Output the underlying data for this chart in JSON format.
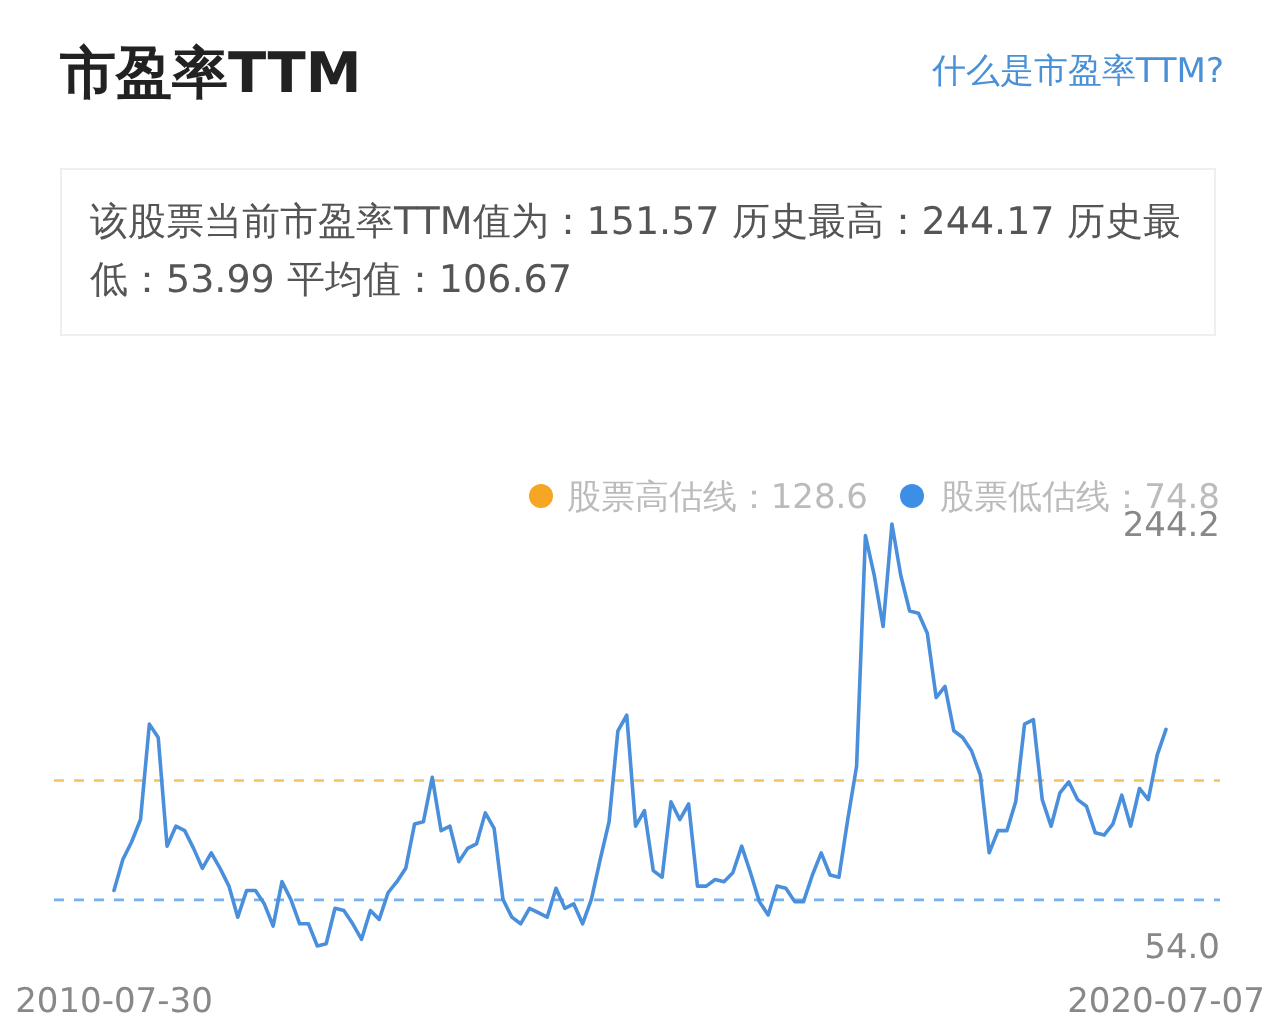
{
  "chart_data": {
    "type": "line",
    "title": "市盈率TTM",
    "annotations": [
      "什么是市盈率TTM?",
      "该股票当前市盈率TTM值为：151.57 历史最高：244.17 历史最低：53.99 平均值：106.67"
    ],
    "categories": [
      "2010-07-30",
      null,
      null,
      null,
      null,
      null,
      null,
      null,
      null,
      null,
      null,
      null,
      null,
      null,
      null,
      null,
      null,
      null,
      null,
      null,
      null,
      null,
      null,
      null,
      null,
      null,
      null,
      null,
      null,
      null,
      null,
      null,
      null,
      null,
      null,
      null,
      null,
      null,
      null,
      null,
      null,
      null,
      null,
      null,
      null,
      null,
      null,
      null,
      null,
      null,
      null,
      null,
      null,
      null,
      null,
      null,
      null,
      null,
      null,
      null,
      null,
      null,
      null,
      null,
      null,
      null,
      null,
      null,
      null,
      null,
      null,
      null,
      null,
      null,
      null,
      null,
      null,
      null,
      null,
      null,
      null,
      null,
      null,
      null,
      null,
      null,
      null,
      null,
      null,
      null,
      null,
      null,
      null,
      null,
      null,
      null,
      null,
      null,
      null,
      null,
      null,
      null,
      null,
      null,
      null,
      null,
      null,
      null,
      null,
      null,
      null,
      null,
      null,
      null,
      null,
      null,
      null,
      null,
      null,
      "2020-07-07"
    ],
    "series": [
      {
        "color": "#4a8fdb",
        "values": [
          79,
          93,
          101,
          111,
          154,
          148,
          99,
          108,
          106,
          98,
          89,
          96,
          89,
          81,
          67,
          79,
          79,
          73,
          63,
          83,
          75,
          64,
          64,
          54,
          55,
          71,
          70,
          64,
          57,
          70,
          66,
          78,
          83,
          89,
          109,
          110,
          130,
          106,
          108,
          92,
          98,
          100,
          114,
          107,
          75,
          67,
          64,
          71,
          69,
          67,
          80,
          71,
          73,
          64,
          75,
          93,
          110,
          151,
          158,
          108,
          115,
          88,
          85,
          119,
          111,
          118,
          81,
          81,
          84,
          83,
          87,
          99,
          87,
          74,
          68,
          81,
          80,
          74,
          74,
          86,
          96,
          86,
          85,
          111,
          135,
          239,
          221,
          198,
          244.2,
          221,
          205,
          204,
          195,
          166,
          171,
          151,
          148,
          142,
          131,
          96,
          106,
          106,
          119,
          154,
          156,
          120,
          108,
          123,
          128,
          120,
          117,
          105,
          104,
          109,
          122,
          108,
          125,
          120,
          140,
          151.6
        ]
      }
    ],
    "ylim": [
      54,
      244.2
    ],
    "yticks": [
      {
        "value": 54,
        "label": "54.0"
      },
      {
        "value": 244.2,
        "label": "244.2"
      }
    ],
    "ref_lines": [
      {
        "axis": "y",
        "value": 128.6,
        "label": "股票高估线：128.6",
        "color": "#f5a623",
        "line_style": "dashed"
      },
      {
        "axis": "y",
        "value": 74.8,
        "label": "股票低估线：74.8",
        "color": "#3d8fe6",
        "line_style": "dashed"
      }
    ],
    "legend": "top right",
    "grid": false,
    "marker": "none",
    "line_style": "solid"
  }
}
